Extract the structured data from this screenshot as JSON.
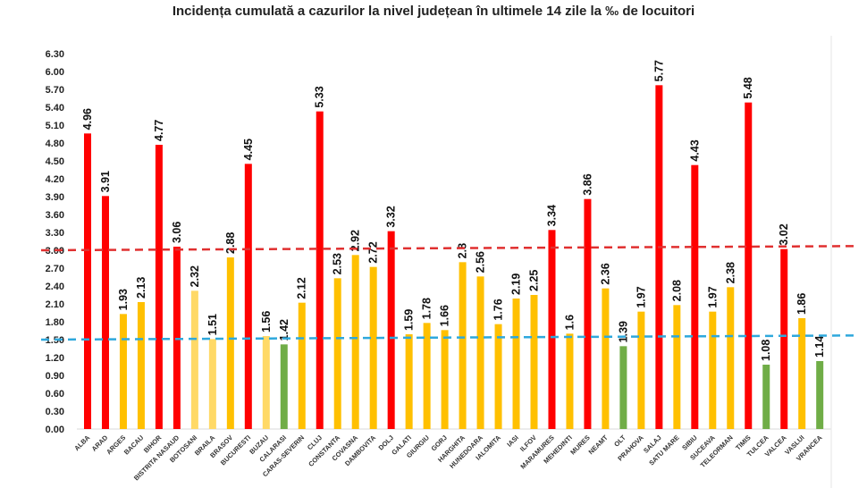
{
  "chart_data": {
    "type": "bar",
    "title": "Incidența cumulată a cazurilor la nivel județean în ultimele 14 zile la ‰ de locuitori",
    "xlabel": "",
    "ylabel": "",
    "ylim": [
      0,
      6.3
    ],
    "yticks": [
      "0.00",
      "0.30",
      "0.60",
      "0.90",
      "1.20",
      "1.50",
      "1.80",
      "2.10",
      "2.40",
      "2.70",
      "3.00",
      "3.30",
      "3.60",
      "3.90",
      "4.20",
      "4.50",
      "4.80",
      "5.10",
      "5.40",
      "5.70",
      "6.00",
      "6.30"
    ],
    "grid": false,
    "categories": [
      "ALBA",
      "ARAD",
      "ARGES",
      "BACAU",
      "BIHOR",
      "BISTRITA NASAUD",
      "BOTOSANI",
      "BRAILA",
      "BRASOV",
      "BUCURESTI",
      "BUZAU",
      "CALARASI",
      "CARAS-SEVERIN",
      "CLUJ",
      "CONSTANTA",
      "COVASNA",
      "DAMBOVITA",
      "DOLJ",
      "GALATI",
      "GIURGIU",
      "GORJ",
      "HARGHITA",
      "HUNEDOARA",
      "IALOMITA",
      "IASI",
      "ILFOV",
      "MARAMURES",
      "MEHEDINTI",
      "MURES",
      "NEAMT",
      "OLT",
      "PRAHOVA",
      "SALAJ",
      "SATU MARE",
      "SIBIU",
      "SUCEAVA",
      "TELEORMAN",
      "TIMIS",
      "TULCEA",
      "VALCEA",
      "VASLUI",
      "VRANCEA"
    ],
    "values": [
      4.96,
      3.91,
      1.93,
      2.13,
      4.77,
      3.06,
      2.32,
      1.51,
      2.88,
      4.45,
      1.56,
      1.42,
      2.12,
      5.33,
      2.53,
      2.92,
      2.72,
      3.32,
      1.59,
      1.78,
      1.66,
      2.8,
      2.56,
      1.76,
      2.19,
      2.25,
      3.34,
      1.6,
      3.86,
      2.36,
      1.39,
      1.97,
      5.77,
      2.08,
      4.43,
      1.97,
      2.38,
      5.48,
      1.08,
      3.02,
      1.86,
      1.14
    ],
    "value_labels": [
      "4.96",
      "3.91",
      "1.93",
      "2.13",
      "4.77",
      "3.06",
      "2.32",
      "1.51",
      "2.88",
      "4.45",
      "1.56",
      "1.42",
      "2.12",
      "5.33",
      "2.53",
      "2.92",
      "2.72",
      "3.32",
      "1.59",
      "1.78",
      "1.66",
      "2.8",
      "2.56",
      "1.76",
      "2.19",
      "2.25",
      "3.34",
      "1.6",
      "3.86",
      "2.36",
      "1.39",
      "1.97",
      "5.77",
      "2.08",
      "4.43",
      "1.97",
      "2.38",
      "5.48",
      "1.08",
      "3.02",
      "1.86",
      "1.14"
    ],
    "bar_colors": [
      "#FF0000",
      "#FF0000",
      "#FFC000",
      "#FFC000",
      "#FF0000",
      "#FF0000",
      "#FFD966",
      "#FFD966",
      "#FFC000",
      "#FF0000",
      "#FFD966",
      "#70AD47",
      "#FFC000",
      "#FF0000",
      "#FFC000",
      "#FFC000",
      "#FFC000",
      "#FF0000",
      "#FFC000",
      "#FFC000",
      "#FFC000",
      "#FFC000",
      "#FFC000",
      "#FFC000",
      "#FFC000",
      "#FFC000",
      "#FF0000",
      "#FFC000",
      "#FF0000",
      "#FFC000",
      "#70AD47",
      "#FFC000",
      "#FF0000",
      "#FFC000",
      "#FF0000",
      "#FFC000",
      "#FFC000",
      "#FF0000",
      "#70AD47",
      "#FF0000",
      "#FFC000",
      "#70AD47"
    ],
    "reference_lines": [
      {
        "value_start": 3.0,
        "value_end": 3.07,
        "color": "#E03030",
        "style": "dashed"
      },
      {
        "value_start": 1.5,
        "value_end": 1.57,
        "color": "#2EA8DC",
        "style": "dashed"
      }
    ]
  }
}
